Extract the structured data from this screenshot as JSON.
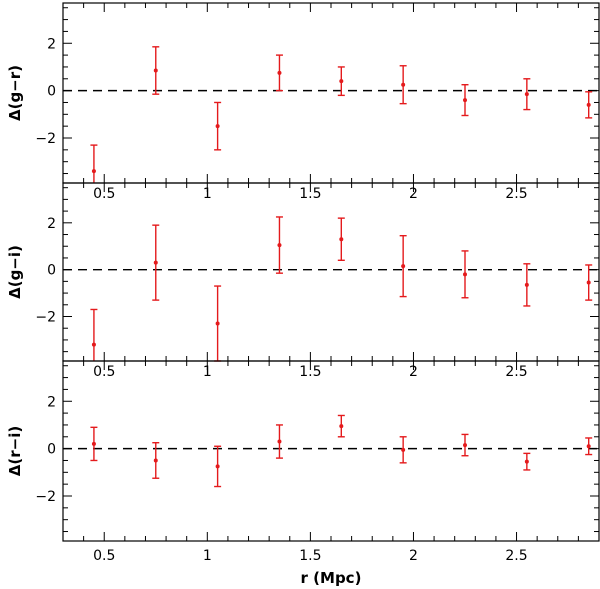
{
  "chart_data": {
    "type": "scatter",
    "errorbars": true,
    "shared_x": {
      "label": "r (Mpc)",
      "lim": [
        0.3,
        2.9
      ],
      "ticks": [
        0.5,
        1,
        1.5,
        2,
        2.5
      ],
      "tick_labels": [
        "0.5",
        "1",
        "1.5",
        "2",
        "2.5"
      ]
    },
    "grid": false,
    "reference_line": 0,
    "marker_color": "#e41a1c",
    "panels": [
      {
        "ylabel": "Δ(g−r)",
        "ylim": [
          -3.9,
          3.7
        ],
        "yticks": [
          -2,
          0,
          2
        ],
        "ytick_labels": [
          "−2",
          "0",
          "2"
        ],
        "points": [
          {
            "x": 0.45,
            "y": -3.4,
            "yerr_low": 1.1,
            "yerr_high": 1.1
          },
          {
            "x": 0.75,
            "y": 0.85,
            "yerr_low": 1.0,
            "yerr_high": 1.0
          },
          {
            "x": 1.05,
            "y": -1.5,
            "yerr_low": 1.0,
            "yerr_high": 1.0
          },
          {
            "x": 1.35,
            "y": 0.75,
            "yerr_low": 0.75,
            "yerr_high": 0.75
          },
          {
            "x": 1.65,
            "y": 0.4,
            "yerr_low": 0.6,
            "yerr_high": 0.6
          },
          {
            "x": 1.95,
            "y": 0.25,
            "yerr_low": 0.8,
            "yerr_high": 0.8
          },
          {
            "x": 2.25,
            "y": -0.4,
            "yerr_low": 0.65,
            "yerr_high": 0.65
          },
          {
            "x": 2.55,
            "y": -0.15,
            "yerr_low": 0.65,
            "yerr_high": 0.65
          },
          {
            "x": 2.85,
            "y": -0.6,
            "yerr_low": 0.55,
            "yerr_high": 0.55
          }
        ]
      },
      {
        "ylabel": "Δ(g−i)",
        "ylim": [
          -3.9,
          3.7
        ],
        "yticks": [
          -2,
          0,
          2
        ],
        "ytick_labels": [
          "−2",
          "0",
          "2"
        ],
        "points": [
          {
            "x": 0.45,
            "y": -3.2,
            "yerr_low": 1.5,
            "yerr_high": 1.5
          },
          {
            "x": 0.75,
            "y": 0.3,
            "yerr_low": 1.6,
            "yerr_high": 1.6
          },
          {
            "x": 1.05,
            "y": -2.3,
            "yerr_low": 1.6,
            "yerr_high": 1.6
          },
          {
            "x": 1.35,
            "y": 1.05,
            "yerr_low": 1.2,
            "yerr_high": 1.2
          },
          {
            "x": 1.65,
            "y": 1.3,
            "yerr_low": 0.9,
            "yerr_high": 0.9
          },
          {
            "x": 1.95,
            "y": 0.15,
            "yerr_low": 1.3,
            "yerr_high": 1.3
          },
          {
            "x": 2.25,
            "y": -0.2,
            "yerr_low": 1.0,
            "yerr_high": 1.0
          },
          {
            "x": 2.55,
            "y": -0.65,
            "yerr_low": 0.9,
            "yerr_high": 0.9
          },
          {
            "x": 2.85,
            "y": -0.55,
            "yerr_low": 0.75,
            "yerr_high": 0.75
          }
        ]
      },
      {
        "ylabel": "Δ(r−i)",
        "ylim": [
          -3.9,
          3.7
        ],
        "yticks": [
          -2,
          0,
          2
        ],
        "ytick_labels": [
          "−2",
          "0",
          "2"
        ],
        "points": [
          {
            "x": 0.45,
            "y": 0.2,
            "yerr_low": 0.7,
            "yerr_high": 0.7
          },
          {
            "x": 0.75,
            "y": -0.5,
            "yerr_low": 0.75,
            "yerr_high": 0.75
          },
          {
            "x": 1.05,
            "y": -0.75,
            "yerr_low": 0.85,
            "yerr_high": 0.85
          },
          {
            "x": 1.35,
            "y": 0.3,
            "yerr_low": 0.7,
            "yerr_high": 0.7
          },
          {
            "x": 1.65,
            "y": 0.95,
            "yerr_low": 0.45,
            "yerr_high": 0.45
          },
          {
            "x": 1.95,
            "y": -0.05,
            "yerr_low": 0.55,
            "yerr_high": 0.55
          },
          {
            "x": 2.25,
            "y": 0.15,
            "yerr_low": 0.45,
            "yerr_high": 0.45
          },
          {
            "x": 2.55,
            "y": -0.55,
            "yerr_low": 0.35,
            "yerr_high": 0.35
          },
          {
            "x": 2.85,
            "y": 0.1,
            "yerr_low": 0.35,
            "yerr_high": 0.35
          }
        ]
      }
    ]
  }
}
